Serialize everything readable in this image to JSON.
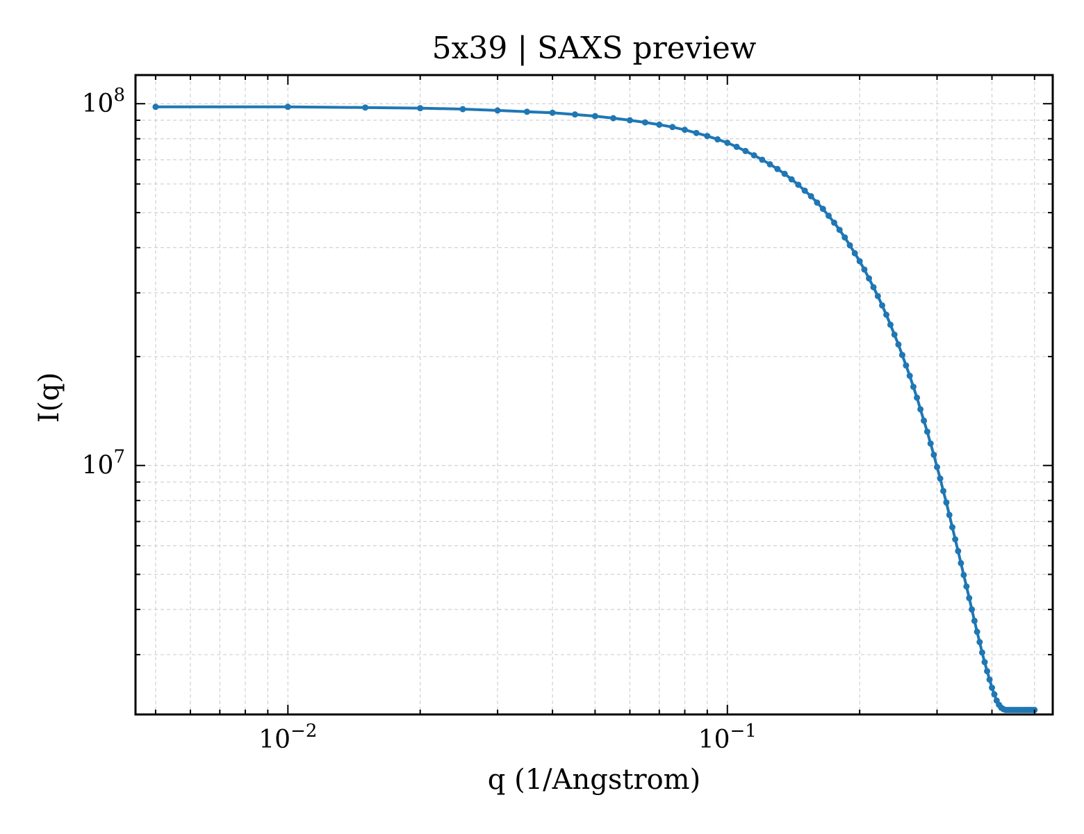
{
  "chart_data": {
    "type": "line",
    "title": "5x39 | SAXS preview",
    "xlabel": "q (1/Angstrom)",
    "ylabel": "I(q)",
    "xscale": "log",
    "yscale": "log",
    "xlim": [
      0.0045,
      0.55
    ],
    "ylim": [
      2050000,
      120000000
    ],
    "grid": true,
    "legend": "none",
    "colors": {
      "series": "#1f77b4",
      "grid": "#d0d0d0",
      "axes": "#000000"
    },
    "x_ticks": [
      {
        "value": 0.01,
        "base": "10",
        "exp": "−2"
      },
      {
        "value": 0.1,
        "base": "10",
        "exp": "−1"
      }
    ],
    "y_ticks": [
      {
        "value": 10000000,
        "base": "10",
        "exp": "7"
      },
      {
        "value": 100000000,
        "base": "10",
        "exp": "8"
      }
    ],
    "series": [
      {
        "marker": "circle",
        "x": [
          0.005,
          0.01,
          0.015,
          0.02,
          0.025,
          0.03,
          0.035,
          0.04,
          0.045,
          0.05,
          0.055,
          0.06,
          0.065,
          0.07,
          0.075,
          0.08,
          0.085,
          0.09,
          0.095,
          0.1,
          0.105,
          0.11,
          0.115,
          0.12,
          0.125,
          0.13,
          0.135,
          0.14,
          0.145,
          0.15,
          0.155,
          0.16,
          0.165,
          0.17,
          0.175,
          0.18,
          0.185,
          0.19,
          0.195,
          0.2,
          0.205,
          0.21,
          0.215,
          0.22,
          0.225,
          0.23,
          0.235,
          0.24,
          0.245,
          0.25,
          0.255,
          0.26,
          0.265,
          0.27,
          0.275,
          0.28,
          0.285,
          0.29,
          0.295,
          0.3,
          0.305,
          0.31,
          0.315,
          0.32,
          0.325,
          0.33,
          0.335,
          0.34,
          0.345,
          0.35,
          0.355,
          0.36,
          0.365,
          0.37,
          0.375,
          0.38,
          0.385,
          0.39,
          0.395,
          0.4,
          0.405,
          0.41,
          0.415,
          0.42,
          0.425,
          0.43,
          0.435,
          0.44,
          0.445,
          0.45,
          0.455,
          0.46,
          0.465,
          0.47,
          0.475,
          0.48,
          0.485,
          0.49,
          0.495,
          0.5
        ],
        "y": [
          98000000,
          98000000,
          97600000,
          97200000,
          96600000,
          95800000,
          95000000,
          94400000,
          93400000,
          92400000,
          91200000,
          90000000,
          88800000,
          87500000,
          86200000,
          84700000,
          83000000,
          81400000,
          79700000,
          78000000,
          76000000,
          74000000,
          72000000,
          70000000,
          68000000,
          66000000,
          64000000,
          61800000,
          59700000,
          57500000,
          55500000,
          53300000,
          51200000,
          49000000,
          46900000,
          44800000,
          42700000,
          40600000,
          38600000,
          36700000,
          34800000,
          32900000,
          31100000,
          29400000,
          27700000,
          26100000,
          24500000,
          23000000,
          21600000,
          20200000,
          18900000,
          17700000,
          16500000,
          15400000,
          14300000,
          13300000,
          12400000,
          11500000,
          10700000,
          9900000,
          9200000,
          8500000,
          7900000,
          7300000,
          6750000,
          6250000,
          5800000,
          5370000,
          4980000,
          4630000,
          4300000,
          4000000,
          3720000,
          3470000,
          3250000,
          3040000,
          2860000,
          2700000,
          2560000,
          2430000,
          2330000,
          2240000,
          2180000,
          2140000,
          2120000,
          2110000,
          2110000,
          2110000,
          2110000,
          2110000,
          2110000,
          2110000,
          2110000,
          2110000,
          2110000,
          2110000,
          2110000,
          2110000,
          2110000,
          2110000
        ]
      }
    ]
  }
}
